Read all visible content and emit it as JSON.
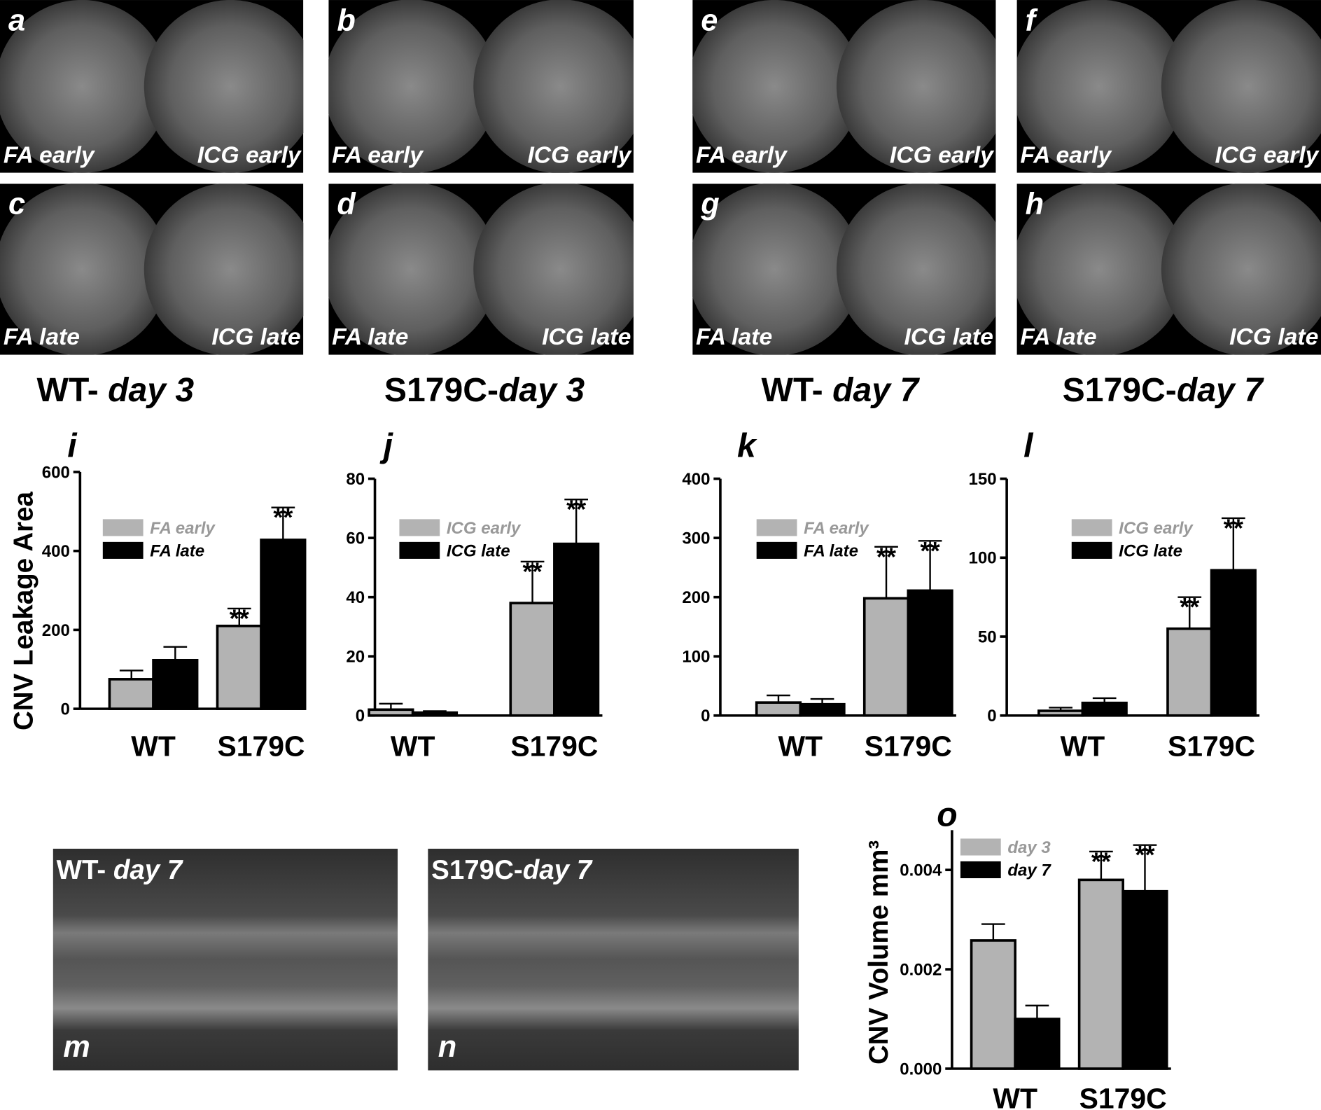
{
  "figure_panels": [
    {
      "label": "a",
      "left": "FA early",
      "right": "ICG early"
    },
    {
      "label": "b",
      "left": "FA early",
      "right": "ICG early"
    },
    {
      "label": "e",
      "left": "FA early",
      "right": "ICG early"
    },
    {
      "label": "f",
      "left": "FA early",
      "right": "ICG early"
    },
    {
      "label": "c",
      "left": "FA late",
      "right": "ICG late"
    },
    {
      "label": "d",
      "left": "FA late",
      "right": "ICG late"
    },
    {
      "label": "g",
      "left": "FA late",
      "right": "ICG late"
    },
    {
      "label": "h",
      "left": "FA late",
      "right": "ICG late"
    }
  ],
  "group_titles": [
    {
      "name": "WT- ",
      "day": "day 3"
    },
    {
      "name": "S179C-",
      "day": "day 3"
    },
    {
      "name": "WT- ",
      "day": "day 7"
    },
    {
      "name": "S179C-",
      "day": "day 7"
    }
  ],
  "oct_panels": [
    {
      "label": "m",
      "name": "WT- ",
      "day": "day 7"
    },
    {
      "label": "n",
      "name": "S179C-",
      "day": "day 7"
    }
  ],
  "chart_data": [
    {
      "type": "bar",
      "panel_label": "i",
      "ylabel": "CNV Leakage Area",
      "categories": [
        "WT",
        "S179C"
      ],
      "series": [
        {
          "name": "FA early",
          "color": "#b3b3b3",
          "values": [
            75,
            210
          ],
          "errors": [
            22,
            44
          ],
          "significance": [
            null,
            "**"
          ]
        },
        {
          "name": "FA late",
          "color": "#000000",
          "values": [
            123,
            428
          ],
          "errors": [
            34,
            82
          ],
          "significance": [
            null,
            "**"
          ]
        }
      ],
      "ylim": [
        0,
        600
      ],
      "yticks": [
        0,
        200,
        400,
        600
      ]
    },
    {
      "type": "bar",
      "panel_label": "j",
      "categories": [
        "WT",
        "S179C"
      ],
      "series": [
        {
          "name": "ICG early",
          "color": "#b3b3b3",
          "values": [
            2,
            38
          ],
          "errors": [
            2,
            14
          ],
          "significance": [
            null,
            "**"
          ]
        },
        {
          "name": "ICG late",
          "color": "#000000",
          "values": [
            1,
            58
          ],
          "errors": [
            0.5,
            15
          ],
          "significance": [
            null,
            "**"
          ]
        }
      ],
      "ylim": [
        0,
        80
      ],
      "yticks": [
        0,
        20,
        40,
        60,
        80
      ]
    },
    {
      "type": "bar",
      "panel_label": "k",
      "categories": [
        "WT",
        "S179C"
      ],
      "series": [
        {
          "name": "FA early",
          "color": "#b3b3b3",
          "values": [
            22,
            198
          ],
          "errors": [
            12,
            87
          ],
          "significance": [
            null,
            "**"
          ]
        },
        {
          "name": "FA late",
          "color": "#000000",
          "values": [
            19,
            211
          ],
          "errors": [
            9,
            84
          ],
          "significance": [
            null,
            "**"
          ]
        }
      ],
      "ylim": [
        0,
        400
      ],
      "yticks": [
        0,
        100,
        200,
        300,
        400
      ]
    },
    {
      "type": "bar",
      "panel_label": "l",
      "categories": [
        "WT",
        "S179C"
      ],
      "series": [
        {
          "name": "ICG early",
          "color": "#b3b3b3",
          "values": [
            3,
            55
          ],
          "errors": [
            2,
            20
          ],
          "significance": [
            null,
            "**"
          ]
        },
        {
          "name": "ICG late",
          "color": "#000000",
          "values": [
            8,
            92
          ],
          "errors": [
            3,
            33
          ],
          "significance": [
            null,
            "**"
          ]
        }
      ],
      "ylim": [
        0,
        150
      ],
      "yticks": [
        0,
        50,
        100,
        150
      ]
    },
    {
      "type": "bar",
      "panel_label": "o",
      "ylabel": "CNV Volume mm³",
      "categories": [
        "WT",
        "S179C"
      ],
      "series": [
        {
          "name": "day 3",
          "color": "#b3b3b3",
          "values": [
            0.00258,
            0.0038
          ],
          "errors": [
            0.00033,
            0.00057
          ],
          "significance": [
            null,
            "**"
          ]
        },
        {
          "name": "day 7",
          "color": "#000000",
          "values": [
            0.001,
            0.00357
          ],
          "errors": [
            0.00027,
            0.00093
          ],
          "significance": [
            null,
            "**"
          ]
        }
      ],
      "ylim": [
        0,
        0.0048
      ],
      "yticks": [
        {
          "value": 0,
          "label": "0.000"
        },
        {
          "value": 0.002,
          "label": "0.002"
        },
        {
          "value": 0.004,
          "label": "0.004"
        }
      ]
    }
  ]
}
